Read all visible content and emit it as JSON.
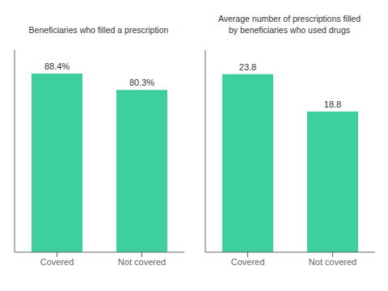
{
  "chart_data": [
    {
      "type": "bar",
      "title": "Beneficiaries who filled a prescription",
      "categories": [
        "Covered",
        "Not covered"
      ],
      "values": [
        88.4,
        80.3
      ],
      "value_labels": [
        "88.4%",
        "80.3%"
      ],
      "ylim": [
        0,
        100
      ],
      "color": "#3ECFA0",
      "data_labels": true,
      "tick_labels": "x",
      "grid": false
    },
    {
      "type": "bar",
      "title": "Average number of prescriptions filled\nby beneficiaries who used drugs",
      "categories": [
        "Covered",
        "Not covered"
      ],
      "values": [
        23.8,
        18.8
      ],
      "value_labels": [
        "23.8",
        "18.8"
      ],
      "ylim": [
        0,
        27
      ],
      "color": "#3ECFA0",
      "data_labels": true,
      "tick_labels": "x",
      "grid": false
    }
  ]
}
